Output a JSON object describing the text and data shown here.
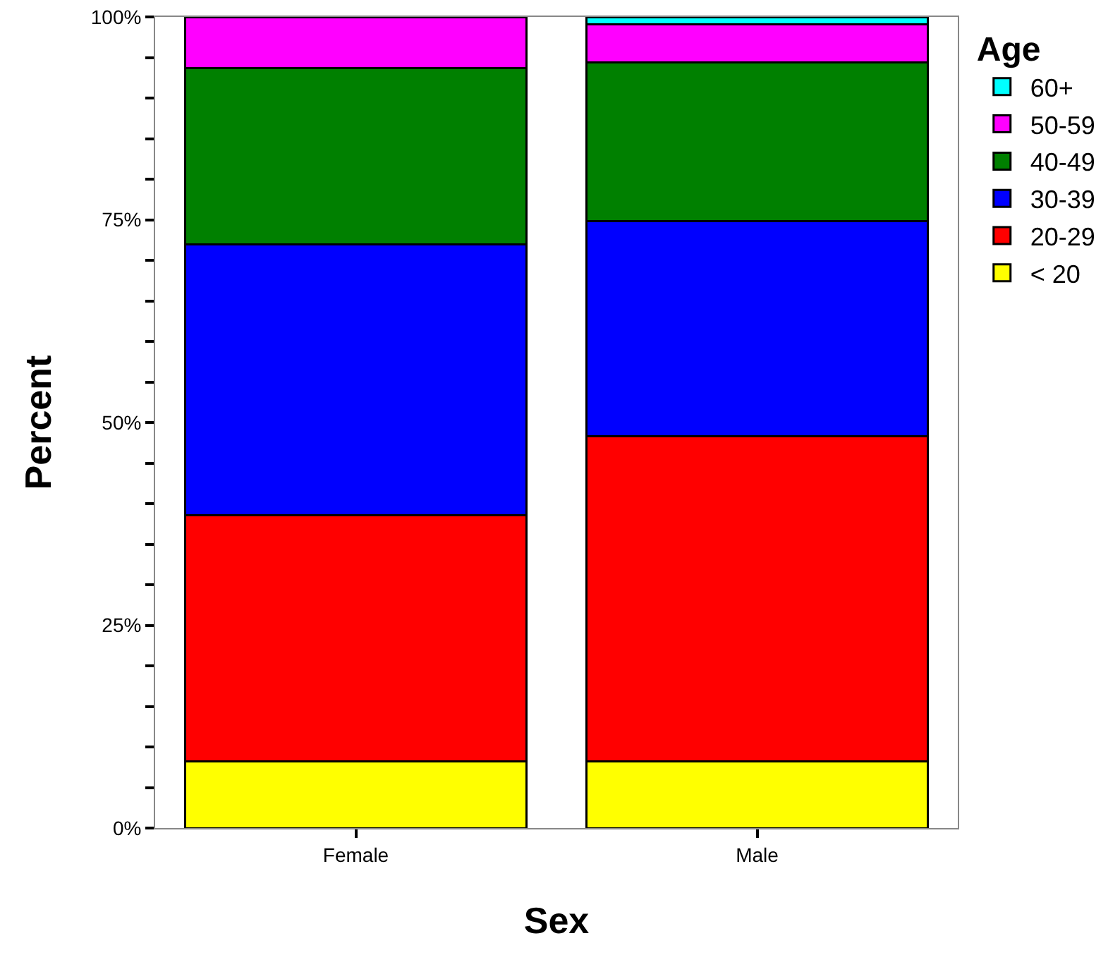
{
  "chart_data": {
    "type": "bar",
    "stacked": true,
    "xlabel": "Sex",
    "ylabel": "Percent",
    "legend_title": "Age",
    "legend": "top right",
    "grid": false,
    "categories": [
      "Female",
      "Male"
    ],
    "series": [
      {
        "name": "< 20",
        "color": "#ffff00",
        "values": [
          8.2,
          8.2
        ]
      },
      {
        "name": "20-29",
        "color": "#ff0000",
        "values": [
          30.4,
          40.1
        ]
      },
      {
        "name": "30-39",
        "color": "#0000ff",
        "values": [
          33.4,
          26.5
        ]
      },
      {
        "name": "40-49",
        "color": "#008000",
        "values": [
          21.7,
          19.6
        ]
      },
      {
        "name": "50-59",
        "color": "#ff00ff",
        "values": [
          6.3,
          4.7
        ]
      },
      {
        "name": "60+",
        "color": "#00ffff",
        "values": [
          null,
          0.9
        ]
      }
    ],
    "ylim": [
      0,
      100
    ],
    "yticks": [
      {
        "value": 0,
        "label": "0%"
      },
      {
        "value": 5,
        "label": null
      },
      {
        "value": 10,
        "label": null
      },
      {
        "value": 15,
        "label": null
      },
      {
        "value": 20,
        "label": null
      },
      {
        "value": 25,
        "label": "25%"
      },
      {
        "value": 30,
        "label": null
      },
      {
        "value": 35,
        "label": null
      },
      {
        "value": 40,
        "label": null
      },
      {
        "value": 45,
        "label": null
      },
      {
        "value": 50,
        "label": "50%"
      },
      {
        "value": 55,
        "label": null
      },
      {
        "value": 60,
        "label": null
      },
      {
        "value": 65,
        "label": null
      },
      {
        "value": 70,
        "label": null
      },
      {
        "value": 75,
        "label": "75%"
      },
      {
        "value": 80,
        "label": null
      },
      {
        "value": 85,
        "label": null
      },
      {
        "value": 90,
        "label": null
      },
      {
        "value": 95,
        "label": null
      },
      {
        "value": 100,
        "label": "100%"
      }
    ]
  }
}
